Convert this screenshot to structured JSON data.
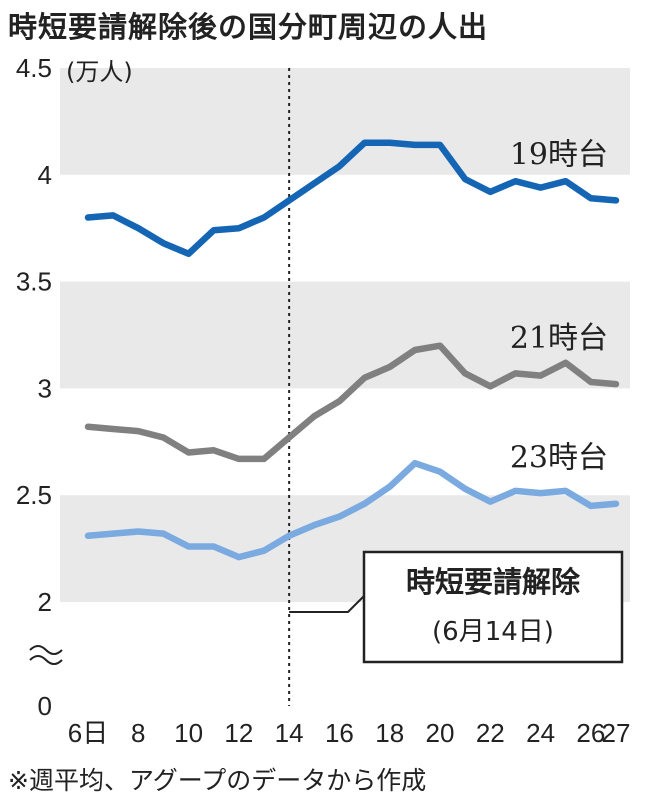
{
  "title": "時短要請解除後の国分町周辺の人出",
  "note": "※週平均、アグープのデータから作成",
  "chart_data": {
    "type": "line",
    "unit_label": "(万人)",
    "y_ticks": [
      "0",
      "2",
      "2.5",
      "3",
      "3.5",
      "4",
      "4.5"
    ],
    "ylim": [
      2,
      4.5
    ],
    "axis_break": true,
    "grid": "alternating horizontal bands",
    "x_ticks": [
      "6日",
      "8",
      "10",
      "12",
      "14",
      "16",
      "18",
      "20",
      "22",
      "24",
      "26",
      "27"
    ],
    "x_tick_positions": [
      6,
      8,
      10,
      12,
      14,
      16,
      18,
      20,
      22,
      24,
      26,
      27
    ],
    "x": [
      6,
      7,
      8,
      9,
      10,
      11,
      12,
      13,
      14,
      15,
      16,
      17,
      18,
      19,
      20,
      21,
      22,
      23,
      24,
      25,
      26,
      27
    ],
    "series": [
      {
        "name": "19時台",
        "color": "#1565b5",
        "values": [
          3.8,
          3.81,
          3.75,
          3.68,
          3.63,
          3.74,
          3.75,
          3.8,
          3.88,
          3.96,
          4.04,
          4.15,
          4.15,
          4.14,
          4.14,
          3.98,
          3.92,
          3.97,
          3.94,
          3.97,
          3.89,
          3.88
        ]
      },
      {
        "name": "21時台",
        "color": "#808080",
        "values": [
          2.82,
          2.81,
          2.8,
          2.77,
          2.7,
          2.71,
          2.67,
          2.67,
          2.77,
          2.87,
          2.94,
          3.05,
          3.1,
          3.18,
          3.2,
          3.07,
          3.01,
          3.07,
          3.06,
          3.12,
          3.03,
          3.02
        ]
      },
      {
        "name": "23時台",
        "color": "#7aaadf",
        "values": [
          2.31,
          2.32,
          2.33,
          2.32,
          2.26,
          2.26,
          2.21,
          2.24,
          2.31,
          2.36,
          2.4,
          2.46,
          2.54,
          2.65,
          2.61,
          2.53,
          2.47,
          2.52,
          2.51,
          2.52,
          2.45,
          2.46
        ]
      }
    ],
    "annotation": {
      "x": 14,
      "label": "時短要請解除",
      "sublabel": "(6月14日)"
    }
  }
}
